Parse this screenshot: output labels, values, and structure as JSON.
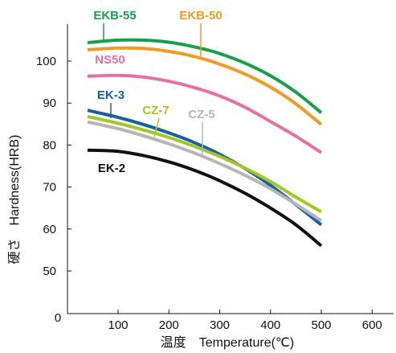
{
  "chart_data": {
    "type": "line",
    "xlabel": "温度　Temperature(℃)",
    "ylabel": "硬さ　Hardness(HRB)",
    "xlim": [
      0,
      650
    ],
    "ylim": [
      0,
      110
    ],
    "x_ticks": [
      100,
      200,
      300,
      400,
      500,
      600
    ],
    "y_ticks": [
      50,
      60,
      70,
      80,
      90,
      100
    ],
    "origin_label": "0",
    "grid": false,
    "series": [
      {
        "name": "EKB-55",
        "color": "#13a24a",
        "x": [
          40,
          100,
          150,
          200,
          250,
          300,
          350,
          400,
          450,
          500
        ],
        "y": [
          104.4,
          105.0,
          105.0,
          104.5,
          103.4,
          101.8,
          99.5,
          96.5,
          92.6,
          87.7
        ]
      },
      {
        "name": "EKB-50",
        "color": "#f39a1e",
        "x": [
          40,
          100,
          150,
          200,
          250,
          300,
          350,
          400,
          450,
          500
        ],
        "y": [
          102.7,
          103.1,
          103.0,
          102.3,
          101.1,
          99.3,
          96.9,
          93.8,
          89.8,
          84.9
        ]
      },
      {
        "name": "NS50",
        "color": "#ec6ea0",
        "x": [
          40,
          100,
          150,
          200,
          250,
          300,
          350,
          400,
          450,
          500
        ],
        "y": [
          96.4,
          96.6,
          96.2,
          95.2,
          93.7,
          91.7,
          89.0,
          85.6,
          82.1,
          78.2
        ]
      },
      {
        "name": "EK-3",
        "color": "#1560a8",
        "x": [
          40,
          100,
          150,
          200,
          250,
          300,
          350,
          400,
          450,
          500
        ],
        "y": [
          88.3,
          86.6,
          84.9,
          82.9,
          80.6,
          77.8,
          74.4,
          70.4,
          65.8,
          61.0
        ]
      },
      {
        "name": "CZ-7",
        "color": "#a3c91e",
        "x": [
          40,
          100,
          150,
          200,
          250,
          300,
          350,
          400,
          450,
          500
        ],
        "y": [
          86.8,
          85.2,
          83.6,
          81.8,
          79.7,
          77.3,
          74.5,
          71.3,
          67.6,
          64.1
        ]
      },
      {
        "name": "CZ-5",
        "color": "#b5b5b5",
        "x": [
          40,
          100,
          150,
          200,
          250,
          300,
          350,
          400,
          450,
          500
        ],
        "y": [
          85.5,
          83.9,
          82.2,
          80.3,
          78.1,
          75.6,
          72.8,
          69.6,
          65.9,
          62.0
        ]
      },
      {
        "name": "EK-2",
        "color": "#111111",
        "x": [
          40,
          100,
          150,
          200,
          250,
          300,
          350,
          400,
          450,
          500
        ],
        "y": [
          78.8,
          78.5,
          77.5,
          76.0,
          74.0,
          71.5,
          68.5,
          65.0,
          61.0,
          56.0
        ]
      }
    ]
  }
}
